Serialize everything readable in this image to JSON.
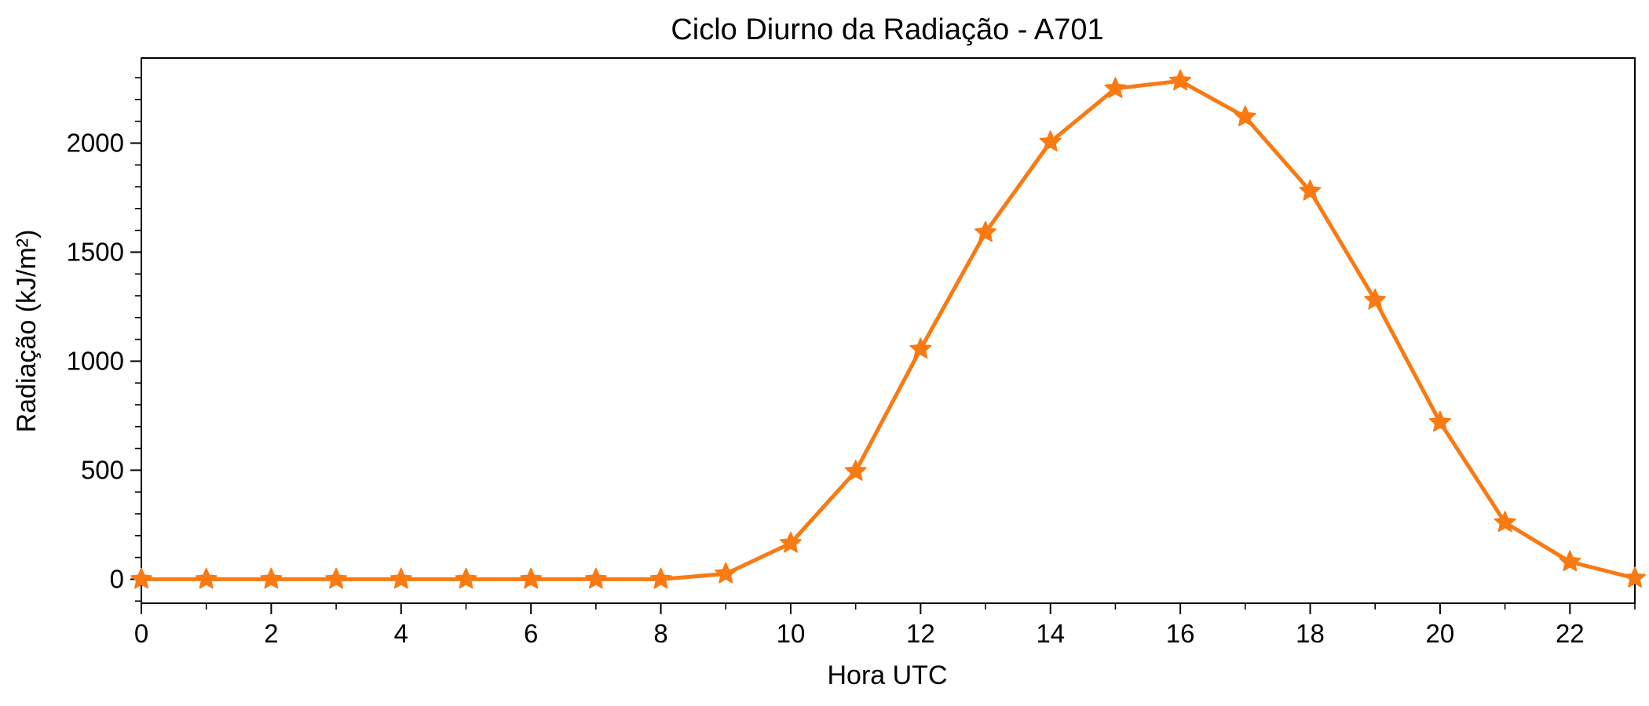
{
  "chart_data": {
    "type": "line",
    "title": "Ciclo Diurno da Radiação - A701",
    "xlabel": "Hora UTC",
    "ylabel": "Radiação (kJ/m²)",
    "xlim": [
      0,
      23
    ],
    "ylim": [
      -110,
      2390
    ],
    "x_ticks": [
      0,
      2,
      4,
      6,
      8,
      10,
      12,
      14,
      16,
      18,
      20,
      22
    ],
    "y_ticks": [
      0,
      500,
      1000,
      1500,
      2000
    ],
    "y_minor_step": 100,
    "x_minor_step": 1,
    "grid": false,
    "colors": {
      "series": "#f97a12"
    },
    "marker": "star",
    "series": [
      {
        "x": [
          0,
          1,
          2,
          3,
          4,
          5,
          6,
          7,
          8,
          9,
          10,
          11,
          12,
          13,
          14,
          15,
          16,
          17,
          18,
          19,
          20,
          21,
          22,
          23
        ],
        "values": [
          0,
          0,
          0,
          0,
          0,
          0,
          0,
          0,
          0,
          25,
          165,
          495,
          1055,
          1590,
          2005,
          2250,
          2285,
          2120,
          1780,
          1280,
          720,
          260,
          80,
          5
        ]
      }
    ]
  }
}
